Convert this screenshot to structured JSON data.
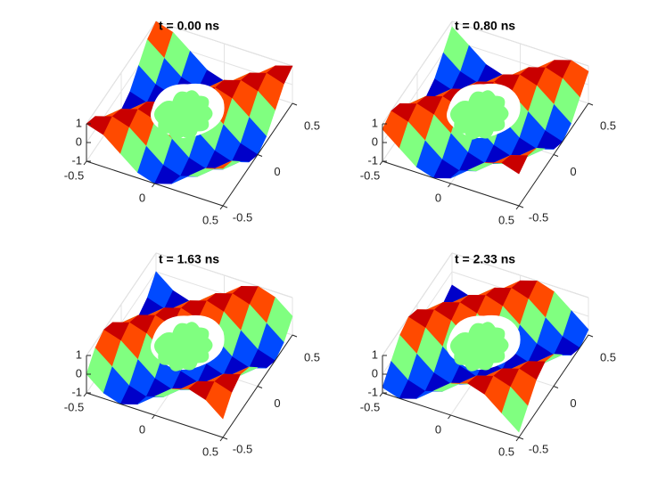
{
  "chart_data": [
    {
      "type": "surface",
      "title": "t = 0.00 ns",
      "colormap": "jet",
      "x": [
        -0.5,
        -0.375,
        -0.25,
        -0.125,
        0,
        0.125,
        0.25,
        0.375,
        0.5
      ],
      "y": [
        -0.5,
        -0.375,
        -0.25,
        -0.125,
        0,
        0.125,
        0.25,
        0.375,
        0.5
      ],
      "z": [
        [
          1,
          0.71,
          0,
          -0.71,
          -1,
          -0.71,
          0,
          0.71,
          1
        ],
        [
          0.71,
          1,
          0.71,
          0,
          -0.71,
          -1,
          -0.71,
          0,
          0.71
        ],
        [
          0,
          0.71,
          1,
          0.71,
          0,
          -0.71,
          -1,
          -0.71,
          0
        ],
        [
          -0.71,
          0,
          0.71,
          1,
          0.71,
          0,
          -0.71,
          -1,
          -0.71
        ],
        [
          -1,
          -0.71,
          0,
          0.71,
          1,
          0.71,
          0,
          -0.71,
          -1
        ],
        [
          -0.71,
          -1,
          -0.71,
          0,
          0.71,
          1,
          0.71,
          0,
          -0.71
        ],
        [
          0,
          -0.71,
          -1,
          -0.71,
          0,
          0.71,
          1,
          0.71,
          0
        ],
        [
          0.71,
          0,
          -0.71,
          -1,
          -0.71,
          0,
          0.71,
          1,
          0.71
        ],
        [
          1,
          0.71,
          0,
          -0.71,
          -1,
          -0.71,
          0,
          0.71,
          1
        ]
      ],
      "xlim": [
        -0.5,
        0.5
      ],
      "xticks": [
        -0.5,
        0,
        0.5
      ],
      "ylim": [
        -0.5,
        0.5
      ],
      "yticks": [
        -0.5,
        0,
        0.5
      ],
      "zlim": [
        -1,
        1
      ],
      "zticks": [
        -1,
        0,
        1
      ],
      "grid": true
    },
    {
      "type": "surface",
      "title": "t = 0.80 ns",
      "colormap": "jet",
      "x": [
        -0.5,
        -0.375,
        -0.25,
        -0.125,
        0,
        0.125,
        0.25,
        0.375,
        0.5
      ],
      "y": [
        -0.5,
        -0.375,
        -0.25,
        -0.125,
        0,
        0.125,
        0.25,
        0.375,
        0.5
      ],
      "z": [
        [
          0.71,
          0,
          -0.71,
          -1,
          -0.71,
          0,
          0.71,
          1,
          0.71
        ],
        [
          1,
          0.71,
          0,
          -0.71,
          -1,
          -0.71,
          0,
          0.71,
          1
        ],
        [
          0.71,
          1,
          0.71,
          0,
          -0.71,
          -1,
          -0.71,
          0,
          0.71
        ],
        [
          0,
          0.71,
          1,
          0.71,
          0,
          -0.71,
          -1,
          -0.71,
          0
        ],
        [
          -0.71,
          0,
          0.71,
          1,
          0.71,
          0,
          -0.71,
          -1,
          -0.71
        ],
        [
          -1,
          -0.71,
          0,
          0.71,
          1,
          0.71,
          0,
          -0.71,
          -1
        ],
        [
          -0.71,
          -1,
          -0.71,
          0,
          0.71,
          1,
          0.71,
          0,
          -0.71
        ],
        [
          0,
          -0.71,
          -1,
          -0.71,
          0,
          0.71,
          1,
          0.71,
          0
        ],
        [
          0.71,
          0,
          -0.71,
          -1,
          -0.71,
          0,
          0.71,
          1,
          0.71
        ]
      ],
      "xlim": [
        -0.5,
        0.5
      ],
      "xticks": [
        -0.5,
        0,
        0.5
      ],
      "ylim": [
        -0.5,
        0.5
      ],
      "yticks": [
        -0.5,
        0,
        0.5
      ],
      "zlim": [
        -1,
        1
      ],
      "zticks": [
        -1,
        0,
        1
      ],
      "grid": true
    },
    {
      "type": "surface",
      "title": "t = 1.63 ns",
      "colormap": "jet",
      "x": [
        -0.5,
        -0.375,
        -0.25,
        -0.125,
        0,
        0.125,
        0.25,
        0.375,
        0.5
      ],
      "y": [
        -0.5,
        -0.375,
        -0.25,
        -0.125,
        0,
        0.125,
        0.25,
        0.375,
        0.5
      ],
      "z": [
        [
          0,
          -0.71,
          -1,
          -0.71,
          0,
          0.71,
          1,
          0.71,
          0
        ],
        [
          0.71,
          0,
          -0.71,
          -1,
          -0.71,
          0,
          0.71,
          1,
          0.71
        ],
        [
          1,
          0.71,
          0,
          -0.71,
          -1,
          -0.71,
          0,
          0.71,
          1
        ],
        [
          0.71,
          1,
          0.71,
          0,
          -0.71,
          -1,
          -0.71,
          0,
          0.71
        ],
        [
          0,
          0.71,
          1,
          0.71,
          0,
          -0.71,
          -1,
          -0.71,
          0
        ],
        [
          -0.71,
          0,
          0.71,
          1,
          0.71,
          0,
          -0.71,
          -1,
          -0.71
        ],
        [
          -1,
          -0.71,
          0,
          0.71,
          1,
          0.71,
          0,
          -0.71,
          -1
        ],
        [
          -0.71,
          -1,
          -0.71,
          0,
          0.71,
          1,
          0.71,
          0,
          -0.71
        ],
        [
          0,
          -0.71,
          -1,
          -0.71,
          0,
          0.71,
          1,
          0.71,
          0
        ]
      ],
      "xlim": [
        -0.5,
        0.5
      ],
      "xticks": [
        -0.5,
        0,
        0.5
      ],
      "ylim": [
        -0.5,
        0.5
      ],
      "yticks": [
        -0.5,
        0,
        0.5
      ],
      "zlim": [
        -1,
        1
      ],
      "zticks": [
        -1,
        0,
        1
      ],
      "grid": true
    },
    {
      "type": "surface",
      "title": "t = 2.33 ns",
      "colormap": "jet",
      "x": [
        -0.5,
        -0.375,
        -0.25,
        -0.125,
        0,
        0.125,
        0.25,
        0.375,
        0.5
      ],
      "y": [
        -0.5,
        -0.375,
        -0.25,
        -0.125,
        0,
        0.125,
        0.25,
        0.375,
        0.5
      ],
      "z": [
        [
          -0.71,
          -1,
          -0.71,
          0,
          0.71,
          1,
          0.71,
          0,
          -0.71
        ],
        [
          0,
          -0.71,
          -1,
          -0.71,
          0,
          0.71,
          1,
          0.71,
          0
        ],
        [
          0.71,
          0,
          -0.71,
          -1,
          -0.71,
          0,
          0.71,
          1,
          0.71
        ],
        [
          1,
          0.71,
          0,
          -0.71,
          -1,
          -0.71,
          0,
          0.71,
          1
        ],
        [
          0.71,
          1,
          0.71,
          0,
          -0.71,
          -1,
          -0.71,
          0,
          0.71
        ],
        [
          0,
          0.71,
          1,
          0.71,
          0,
          -0.71,
          -1,
          -0.71,
          0
        ],
        [
          -0.71,
          0,
          0.71,
          1,
          0.71,
          0,
          -0.71,
          -1,
          -0.71
        ],
        [
          -1,
          -0.71,
          0,
          0.71,
          1,
          0.71,
          0,
          -0.71,
          -1
        ],
        [
          -0.71,
          -1,
          -0.71,
          0,
          0.71,
          1,
          0.71,
          0,
          -0.71
        ]
      ],
      "xlim": [
        -0.5,
        0.5
      ],
      "xticks": [
        -0.5,
        0,
        0.5
      ],
      "ylim": [
        -0.5,
        0.5
      ],
      "yticks": [
        -0.5,
        0,
        0.5
      ],
      "zlim": [
        -1,
        1
      ],
      "zticks": [
        -1,
        0,
        1
      ],
      "grid": true
    }
  ]
}
